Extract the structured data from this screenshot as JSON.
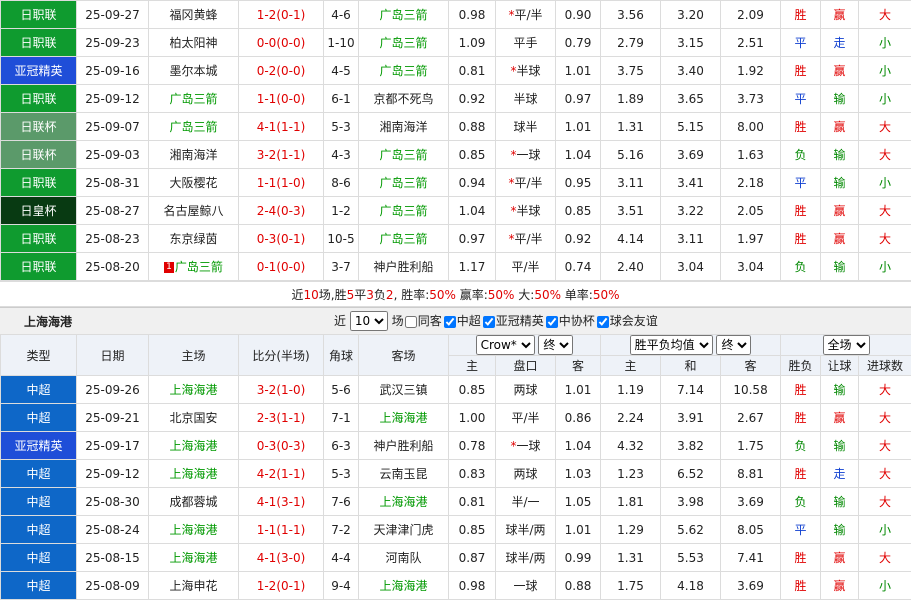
{
  "team_a": {
    "rows": [
      [
        "日职联",
        "25-09-27",
        "福冈黄蜂",
        "1-2(0-1)",
        "4-6",
        "广岛三箭",
        "0.98",
        {
          "star": "*",
          "text": "平/半"
        },
        "0.90",
        "3.56",
        "3.20",
        "2.09",
        "胜",
        "赢",
        "大"
      ],
      [
        "日职联",
        "25-09-23",
        "柏太阳神",
        "0-0(0-0)",
        "1-10",
        "广岛三箭",
        "1.09",
        "平手",
        "0.79",
        "2.79",
        "3.15",
        "2.51",
        "平",
        "走",
        "小"
      ],
      [
        "亚冠精英",
        "25-09-16",
        "墨尔本城",
        "0-2(0-0)",
        "4-5",
        "广岛三箭",
        "0.81",
        {
          "star": "*",
          "text": "半球"
        },
        "1.01",
        "3.75",
        "3.40",
        "1.92",
        "胜",
        "赢",
        "小"
      ],
      [
        "日职联",
        "25-09-12",
        "广岛三箭",
        "1-1(0-0)",
        "6-1",
        "京都不死鸟",
        "0.92",
        "半球",
        "0.97",
        "1.89",
        "3.65",
        "3.73",
        "平",
        "输",
        "小"
      ],
      [
        "日联杯",
        "25-09-07",
        "广岛三箭",
        "4-1(1-1)",
        "5-3",
        "湘南海洋",
        "0.88",
        "球半",
        "1.01",
        "1.31",
        "5.15",
        "8.00",
        "胜",
        "赢",
        "大"
      ],
      [
        "日联杯",
        "25-09-03",
        "湘南海洋",
        "3-2(1-1)",
        "4-3",
        "广岛三箭",
        "0.85",
        {
          "star": "*",
          "text": "一球"
        },
        "1.04",
        "5.16",
        "3.69",
        "1.63",
        "负",
        "输",
        "大"
      ],
      [
        "日职联",
        "25-08-31",
        "大阪樱花",
        "1-1(1-0)",
        "8-6",
        "广岛三箭",
        "0.94",
        {
          "star": "*",
          "text": "平/半"
        },
        "0.95",
        "3.11",
        "3.41",
        "2.18",
        "平",
        "输",
        "小"
      ],
      [
        "日皇杯",
        "25-08-27",
        "名古屋鲸八",
        "2-4(0-3)",
        "1-2",
        "广岛三箭",
        "1.04",
        {
          "star": "*",
          "text": "半球"
        },
        "0.85",
        "3.51",
        "3.22",
        "2.05",
        "胜",
        "赢",
        "大"
      ],
      [
        "日职联",
        "25-08-23",
        "东京绿茵",
        "0-3(0-1)",
        "10-5",
        "广岛三箭",
        "0.97",
        {
          "star": "*",
          "text": "平/半"
        },
        "0.92",
        "4.14",
        "3.11",
        "1.97",
        "胜",
        "赢",
        "大"
      ],
      [
        "日职联",
        "25-08-20",
        {
          "card": "1",
          "text": "广岛三箭"
        },
        "0-1(0-0)",
        "3-7",
        "神户胜利船",
        "1.17",
        "平/半",
        "0.74",
        "2.40",
        "3.04",
        "3.04",
        "负",
        "输",
        "小"
      ]
    ],
    "summary": [
      "近",
      "10",
      "场,胜",
      "5",
      "平",
      "3",
      "负",
      "2",
      ", 胜率:",
      "50%",
      " 赢率:",
      "50%",
      " 大:",
      "50%",
      " 单率:",
      "50%"
    ]
  },
  "team_b": {
    "title": "上海海港",
    "filter": {
      "prefix": "近",
      "count": "10",
      "suffix": "场",
      "options": [
        {
          "label": "同客",
          "checked": false
        },
        {
          "label": "中超",
          "checked": true
        },
        {
          "label": "亚冠精英",
          "checked": true
        },
        {
          "label": "中协杯",
          "checked": true
        },
        {
          "label": "球会友谊",
          "checked": true
        }
      ]
    },
    "headers": [
      "类型",
      "日期",
      "主场",
      "比分(半场)",
      "角球",
      "客场"
    ],
    "selects": [
      [
        "Crow*",
        "终"
      ],
      [
        "胜平负均值",
        "终"
      ],
      [
        "全场"
      ]
    ],
    "subheaders": [
      "主",
      "盘口",
      "客",
      "主",
      "和",
      "客",
      "胜负",
      "让球",
      "进球数"
    ],
    "rows": [
      [
        "中超",
        "25-09-26",
        "上海海港",
        "3-2(1-0)",
        "5-6",
        "武汉三镇",
        "0.85",
        "两球",
        "1.01",
        "1.19",
        "7.14",
        "10.58",
        "胜",
        "输",
        "大"
      ],
      [
        "中超",
        "25-09-21",
        "北京国安",
        "2-3(1-1)",
        "7-1",
        "上海海港",
        "1.00",
        "平/半",
        "0.86",
        "2.24",
        "3.91",
        "2.67",
        "胜",
        "赢",
        "大"
      ],
      [
        "亚冠精英",
        "25-09-17",
        "上海海港",
        "0-3(0-3)",
        "6-3",
        "神户胜利船",
        "0.78",
        {
          "star": "*",
          "text": "一球"
        },
        "1.04",
        "4.32",
        "3.82",
        "1.75",
        "负",
        "输",
        "大"
      ],
      [
        "中超",
        "25-09-12",
        "上海海港",
        "4-2(1-1)",
        "5-3",
        "云南玉昆",
        "0.83",
        "两球",
        "1.03",
        "1.23",
        "6.52",
        "8.81",
        "胜",
        "走",
        "大"
      ],
      [
        "中超",
        "25-08-30",
        "成都蓉城",
        "4-1(3-1)",
        "7-6",
        "上海海港",
        "0.81",
        "半/一",
        "1.05",
        "1.81",
        "3.98",
        "3.69",
        "负",
        "输",
        "大"
      ],
      [
        "中超",
        "25-08-24",
        "上海海港",
        "1-1(1-1)",
        "7-2",
        "天津津门虎",
        "0.85",
        "球半/两",
        "1.01",
        "1.29",
        "5.62",
        "8.05",
        "平",
        "输",
        "小"
      ],
      [
        "中超",
        "25-08-15",
        "上海海港",
        "4-1(3-0)",
        "4-4",
        "河南队",
        "0.87",
        "球半/两",
        "0.99",
        "1.31",
        "5.53",
        "7.41",
        "胜",
        "赢",
        "大"
      ],
      [
        "中超",
        "25-08-09",
        "上海申花",
        "1-2(0-1)",
        "9-4",
        "上海海港",
        "0.98",
        "一球",
        "0.88",
        "1.75",
        "4.18",
        "3.69",
        "胜",
        "赢",
        "小"
      ]
    ]
  },
  "league_colors": {
    "日职联": "#0f9b2f",
    "亚冠精英": "#1f4ed8",
    "日联杯": "#5b9a6a",
    "日皇杯": "#083a12",
    "中超": "#0e67c8"
  },
  "text_colors": {
    "广岛三箭": "#009900",
    "上海海港": "#009900",
    "胜": "#e00000",
    "平": "#1040d0",
    "负": "#008800",
    "赢": "#e00000",
    "走": "#1040d0",
    "输": "#008800",
    "大": "#e00000",
    "小": "#008800"
  }
}
